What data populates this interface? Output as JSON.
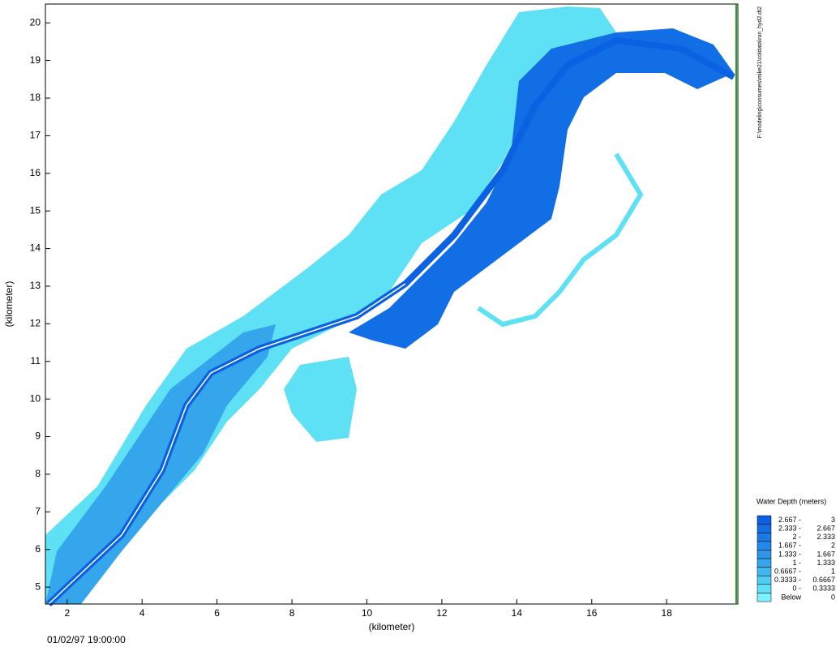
{
  "map": {
    "x_axis": {
      "label": "(kilometer)",
      "lim": [
        1.42,
        19.9
      ],
      "ticks": [
        2,
        4,
        6,
        8,
        10,
        12,
        14,
        16,
        18
      ]
    },
    "y_axis": {
      "label": "(kilometer)",
      "lim": [
        4.55,
        20.5
      ],
      "ticks": [
        5,
        6,
        7,
        8,
        9,
        10,
        11,
        12,
        13,
        14,
        15,
        16,
        17,
        18,
        19,
        20
      ]
    },
    "timestamp": "01/02/97 19:00:00",
    "file_path": "F:\\modeling\\consumes\\mike21\\coldata\\run_hyd2.dt2",
    "legend": {
      "title": "Water Depth (meters)",
      "items": [
        {
          "from": "2.667 -",
          "to": "3",
          "color": "#0a62e2"
        },
        {
          "from": "2.333 -",
          "to": "2.667",
          "color": "#126ee4"
        },
        {
          "from": "2 -",
          "to": "2.333",
          "color": "#1a7ae6"
        },
        {
          "from": "1.667 -",
          "to": "2",
          "color": "#2488e8"
        },
        {
          "from": "1.333 -",
          "to": "1.667",
          "color": "#2d96ea"
        },
        {
          "from": "1 -",
          "to": "1.333",
          "color": "#35a6ec"
        },
        {
          "from": "0.6667 -",
          "to": "1",
          "color": "#40b8ef"
        },
        {
          "from": "0.3333 -",
          "to": "0.6667",
          "color": "#4fcdf2"
        },
        {
          "from": "0 -",
          "to": "0.3333",
          "color": "#5ee0f5"
        },
        {
          "from": "Below",
          "to": "0",
          "color": "#7ff0ff"
        }
      ]
    }
  }
}
